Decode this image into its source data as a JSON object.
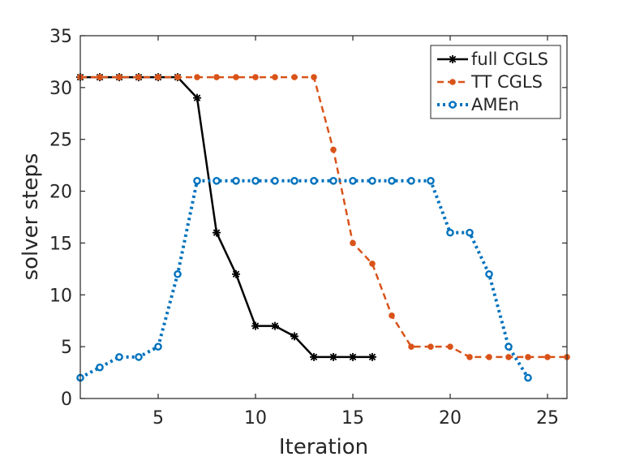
{
  "chart_data": {
    "type": "line",
    "title": "",
    "xlabel": "Iteration",
    "ylabel": "solver steps",
    "xlim": [
      1,
      26
    ],
    "ylim": [
      0,
      35
    ],
    "xticks": [
      5,
      10,
      15,
      20,
      25
    ],
    "yticks": [
      0,
      5,
      10,
      15,
      20,
      25,
      30,
      35
    ],
    "grid": false,
    "legend_position": "top-right",
    "series": [
      {
        "name": "full CGLS",
        "color": "#000000",
        "line_style": "solid",
        "marker": "asterisk",
        "x": [
          1,
          2,
          3,
          4,
          5,
          6,
          7,
          8,
          9,
          10,
          11,
          12,
          13,
          14,
          15,
          16
        ],
        "y": [
          31,
          31,
          31,
          31,
          31,
          31,
          29,
          16,
          12,
          7,
          7,
          6,
          4,
          4,
          4,
          4
        ]
      },
      {
        "name": "TT CGLS",
        "color": "#D95319",
        "line_style": "dashed",
        "marker": "dot",
        "x": [
          1,
          2,
          3,
          4,
          5,
          6,
          7,
          8,
          9,
          10,
          11,
          12,
          13,
          14,
          15,
          16,
          17,
          18,
          19,
          20,
          21,
          22,
          23,
          24,
          25,
          26
        ],
        "y": [
          31,
          31,
          31,
          31,
          31,
          31,
          31,
          31,
          31,
          31,
          31,
          31,
          31,
          24,
          15,
          13,
          8,
          5,
          5,
          5,
          4,
          4,
          4,
          4,
          4,
          4
        ]
      },
      {
        "name": "AMEn",
        "color": "#0072BD",
        "line_style": "dotted",
        "marker": "circle",
        "x": [
          1,
          2,
          3,
          4,
          5,
          6,
          7,
          8,
          9,
          10,
          11,
          12,
          13,
          14,
          15,
          16,
          17,
          18,
          19,
          20,
          21,
          22,
          23,
          24
        ],
        "y": [
          2,
          3,
          4,
          4,
          5,
          12,
          21,
          21,
          21,
          21,
          21,
          21,
          21,
          21,
          21,
          21,
          21,
          21,
          21,
          16,
          16,
          12,
          5,
          2
        ]
      }
    ]
  }
}
